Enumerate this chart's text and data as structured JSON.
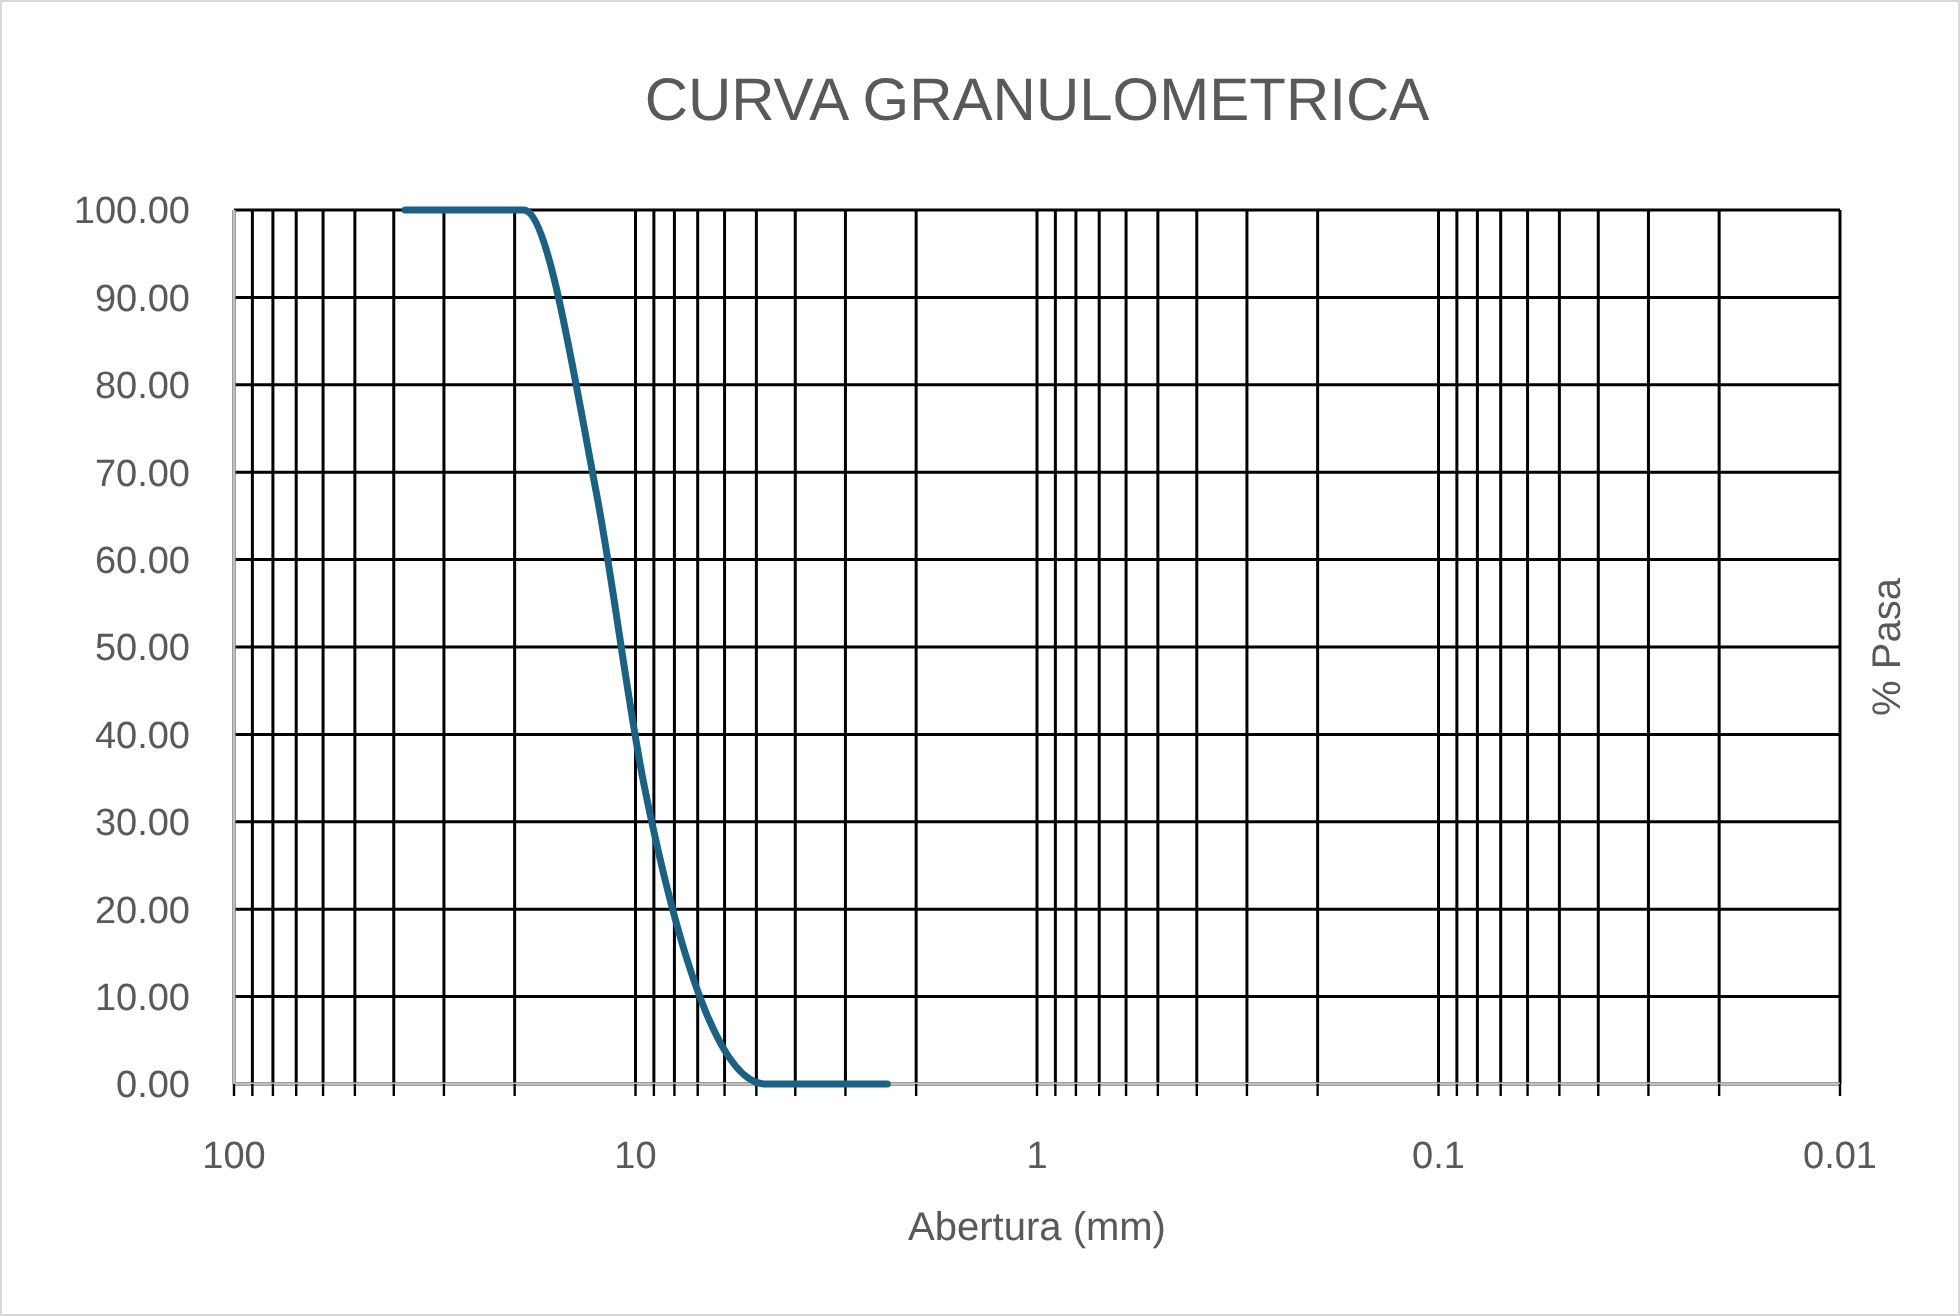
{
  "chart_data": {
    "type": "line",
    "title": "CURVA GRANULOMETRICA",
    "xlabel": "Abertura (mm)",
    "ylabel": "% Pasa",
    "x": [
      37.5,
      25,
      19,
      12.5,
      9.5,
      4.75,
      2.36
    ],
    "series": [
      {
        "color": "#1b6183",
        "values": [
          100,
          100,
          100,
          67.5,
          34,
          0,
          0
        ]
      }
    ],
    "log": "x",
    "xlim": [
      100,
      0.01
    ],
    "xticks": [
      100,
      {
        "value": 90,
        "label": null
      },
      {
        "value": 80,
        "label": null
      },
      {
        "value": 70,
        "label": null
      },
      {
        "value": 60,
        "label": null
      },
      {
        "value": 50,
        "label": null
      },
      {
        "value": 40,
        "label": null
      },
      {
        "value": 30,
        "label": null
      },
      {
        "value": 20,
        "label": null
      },
      10,
      {
        "value": 9,
        "label": null
      },
      {
        "value": 8,
        "label": null
      },
      {
        "value": 7,
        "label": null
      },
      {
        "value": 6,
        "label": null
      },
      {
        "value": 5,
        "label": null
      },
      {
        "value": 4,
        "label": null
      },
      {
        "value": 3,
        "label": null
      },
      {
        "value": 2,
        "label": null
      },
      1,
      {
        "value": 0.9,
        "label": null
      },
      {
        "value": 0.8,
        "label": null
      },
      {
        "value": 0.7,
        "label": null
      },
      {
        "value": 0.6,
        "label": null
      },
      {
        "value": 0.5,
        "label": null
      },
      {
        "value": 0.4,
        "label": null
      },
      {
        "value": 0.3,
        "label": null
      },
      {
        "value": 0.2,
        "label": null
      },
      0.1,
      {
        "value": 0.09,
        "label": null
      },
      {
        "value": 0.08,
        "label": null
      },
      {
        "value": 0.07,
        "label": null
      },
      {
        "value": 0.06,
        "label": null
      },
      {
        "value": 0.05,
        "label": null
      },
      {
        "value": 0.04,
        "label": null
      },
      {
        "value": 0.03,
        "label": null
      },
      {
        "value": 0.02,
        "label": null
      },
      0.01
    ],
    "ylim": [
      0,
      100
    ],
    "yticks": [
      {
        "value": 0,
        "label": "0.00"
      },
      {
        "value": 10,
        "label": "10.00"
      },
      {
        "value": 20,
        "label": "20.00"
      },
      {
        "value": 30,
        "label": "30.00"
      },
      {
        "value": 40,
        "label": "40.00"
      },
      {
        "value": 50,
        "label": "50.00"
      },
      {
        "value": 60,
        "label": "60.00"
      },
      {
        "value": 70,
        "label": "70.00"
      },
      {
        "value": 80,
        "label": "80.00"
      },
      {
        "value": 90,
        "label": "90.00"
      },
      {
        "value": 100,
        "label": "100.00"
      }
    ],
    "grid": true,
    "marker": "none",
    "line_style": "solid"
  }
}
